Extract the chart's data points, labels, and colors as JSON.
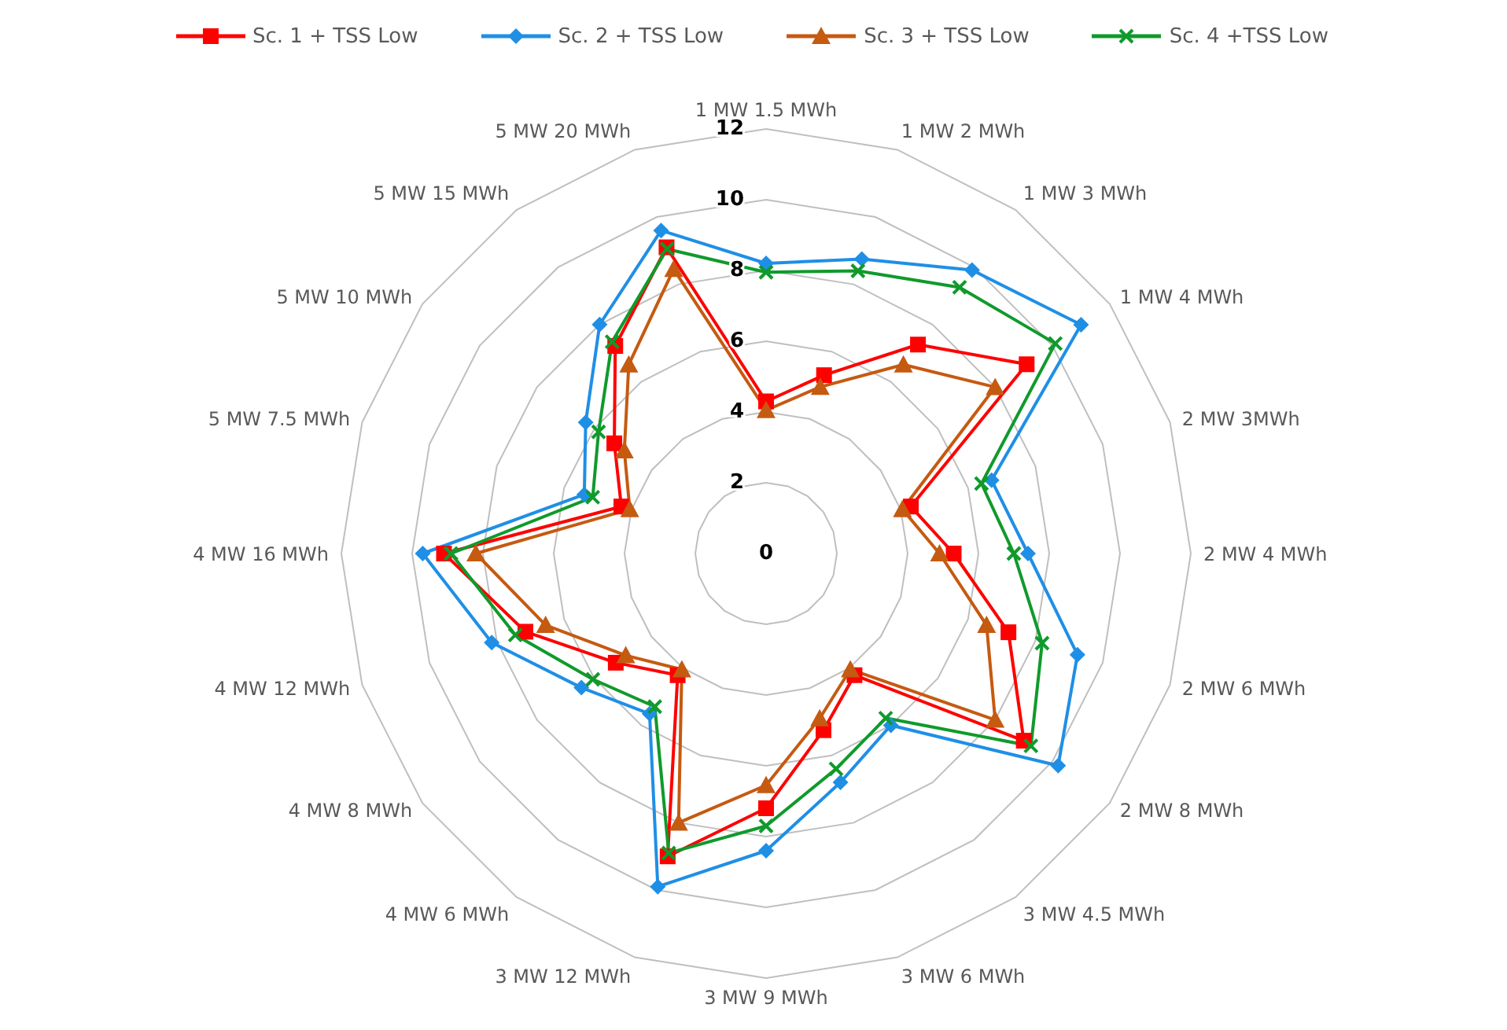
{
  "chart_data": {
    "type": "radar",
    "categories": [
      "1 MW 1.5 MWh",
      "1 MW 2 MWh",
      "1 MW 3 MWh",
      "1 MW 4 MWh",
      "2 MW 3MWh",
      "2 MW 4 MWh",
      "2 MW 6 MWh",
      "2 MW 8 MWh",
      "3 MW 4.5 MWh",
      "3 MW 6 MWh",
      "3 MW 9 MWh",
      "3 MW 12 MWh",
      "4 MW 6 MWh",
      "4 MW 8 MWh",
      "4 MW 12 MWh",
      "4 MW 16 MWh",
      "5 MW  7.5 MWh",
      "5 MW  10 MWh",
      "5 MW  15 MWh",
      "5 MW  20 MWh"
    ],
    "series": [
      {
        "name": "Sc. 1 + TSS Low",
        "color": "#ff0000",
        "marker": "square",
        "values": [
          4.3,
          5.3,
          7.3,
          9.1,
          4.3,
          5.3,
          7.2,
          9.0,
          4.25,
          5.25,
          7.2,
          9.0,
          4.25,
          5.25,
          7.15,
          9.1,
          4.3,
          5.3,
          7.25,
          9.1
        ]
      },
      {
        "name": "Sc. 2 + TSS Low",
        "color": "#1f8fe6",
        "marker": "diamond",
        "values": [
          8.2,
          8.75,
          9.9,
          11.0,
          6.7,
          7.4,
          9.25,
          10.2,
          6.0,
          6.8,
          8.4,
          9.9,
          5.6,
          6.45,
          8.15,
          9.7,
          5.4,
          6.3,
          8.0,
          9.6
        ]
      },
      {
        "name": "Sc. 3 + TSS Low",
        "color": "#c55a11",
        "marker": "triangle",
        "values": [
          4.05,
          4.95,
          6.6,
          8.0,
          4.05,
          4.9,
          6.55,
          8.0,
          4.05,
          4.9,
          6.55,
          8.0,
          4.05,
          4.9,
          6.55,
          8.2,
          4.05,
          4.95,
          6.6,
          8.45
        ]
      },
      {
        "name": "Sc. 4 +TSS Low",
        "color": "#109a2c",
        "marker": "cross",
        "values": [
          7.95,
          8.4,
          9.3,
          10.1,
          6.4,
          7.0,
          8.2,
          9.25,
          5.75,
          6.4,
          7.7,
          8.9,
          5.35,
          6.05,
          7.45,
          8.9,
          5.15,
          5.85,
          7.4,
          9.05
        ]
      }
    ],
    "ylim": [
      0,
      12
    ],
    "yticks": [
      0,
      2,
      4,
      6,
      8,
      10,
      12
    ],
    "grid": true,
    "legend": "top"
  }
}
